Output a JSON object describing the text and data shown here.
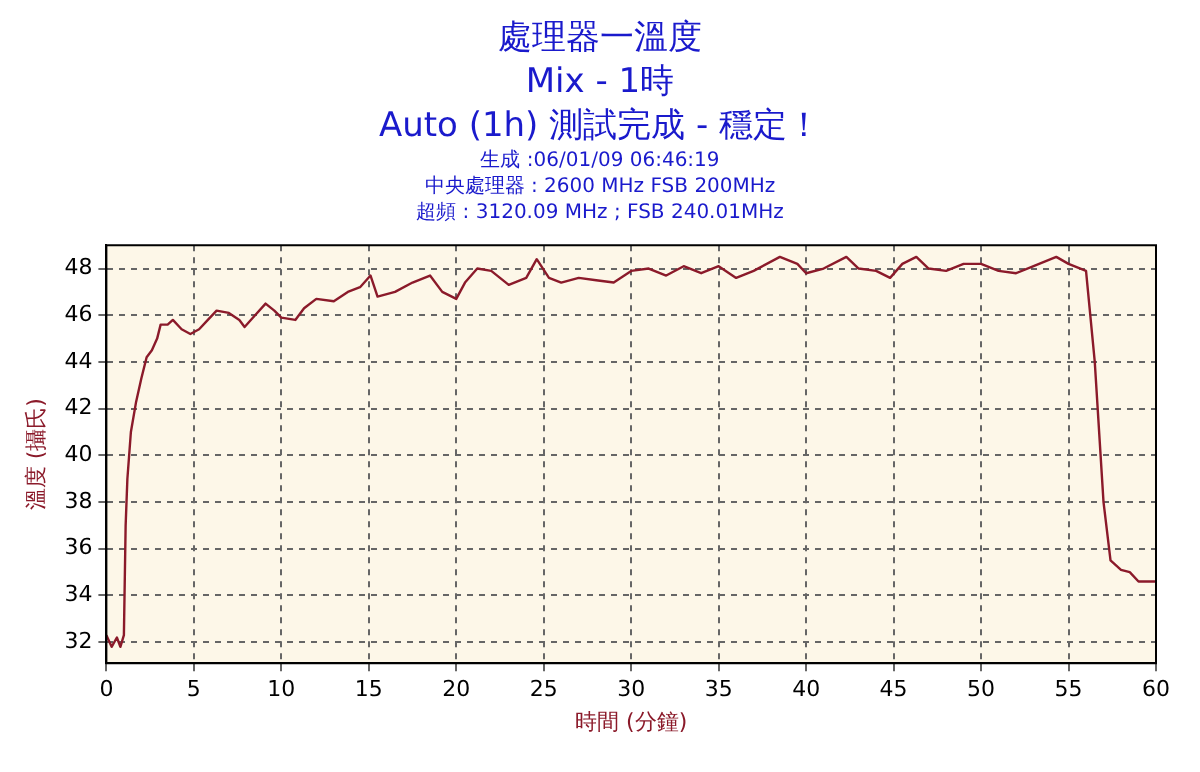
{
  "chart_data": {
    "type": "line",
    "title": "處理器一溫度",
    "subtitle": "Mix - 1時",
    "annotations": [
      "Auto (1h) 測試完成 - 穩定！",
      "生成 :06/01/09 06:46:19",
      "中央處理器 : 2600 MHz FSB 200MHz",
      "超頻 : 3120.09 MHz ; FSB 240.01MHz"
    ],
    "xlabel": "時間 (分鐘)",
    "ylabel": "溫度 (攝氏)",
    "x": [
      0,
      0.3,
      0.6,
      0.8,
      1.0,
      1.1,
      1.2,
      1.4,
      1.7,
      2.0,
      2.3,
      2.6,
      2.9,
      3.1,
      3.5,
      3.8,
      4.3,
      4.8,
      5.3,
      5.8,
      6.3,
      7,
      7.6,
      7.9,
      8.5,
      9.1,
      9.6,
      10,
      10.8,
      11.3,
      12,
      13,
      13.8,
      14.5,
      15.1,
      15.5,
      16.5,
      17.5,
      18.5,
      19.2,
      20,
      20.5,
      21.2,
      22,
      23,
      24,
      24.6,
      25.3,
      26,
      27,
      28,
      29,
      30,
      31,
      32,
      33,
      34,
      35,
      36,
      37,
      38.5,
      39.5,
      40,
      41,
      42.3,
      43,
      44,
      44.8,
      45.5,
      46.3,
      47,
      48,
      49,
      50,
      51,
      52,
      53,
      54.3,
      55,
      56,
      56.5,
      57,
      57.4,
      58,
      58.5,
      59,
      59.5,
      60
    ],
    "series": [
      {
        "color": "#8b1a2a",
        "values": [
          32.3,
          31.8,
          32.2,
          31.8,
          32.3,
          37,
          39,
          41,
          42.3,
          43.3,
          44.2,
          44.5,
          45.0,
          45.6,
          45.6,
          45.8,
          45.4,
          45.2,
          45.4,
          45.8,
          46.2,
          46.1,
          45.8,
          45.5,
          46.0,
          46.5,
          46.2,
          45.9,
          45.8,
          46.3,
          46.7,
          46.6,
          47.0,
          47.2,
          47.7,
          46.8,
          47.0,
          47.4,
          47.7,
          47.0,
          46.7,
          47.4,
          48.0,
          47.9,
          47.3,
          47.6,
          48.4,
          47.6,
          47.4,
          47.6,
          47.5,
          47.4,
          47.9,
          48.0,
          47.7,
          48.1,
          47.8,
          48.1,
          47.6,
          47.9,
          48.5,
          48.2,
          47.8,
          48.0,
          48.5,
          48.0,
          47.9,
          47.6,
          48.2,
          48.5,
          48.0,
          47.9,
          48.2,
          48.2,
          47.9,
          47.8,
          48.1,
          48.5,
          48.2,
          47.9,
          44,
          38,
          35.5,
          35.1,
          35.0,
          34.6,
          34.6,
          34.6
        ]
      }
    ],
    "xlim": [
      0,
      60
    ],
    "xticks": [
      0,
      5,
      10,
      15,
      20,
      25,
      30,
      35,
      40,
      45,
      50,
      55,
      60
    ],
    "ylim": [
      31.1,
      49
    ],
    "yticks": [
      32,
      34,
      36,
      38,
      40,
      42,
      44,
      46,
      48
    ],
    "grid": true,
    "legend": false,
    "marker": "none",
    "line_style": "solid"
  }
}
